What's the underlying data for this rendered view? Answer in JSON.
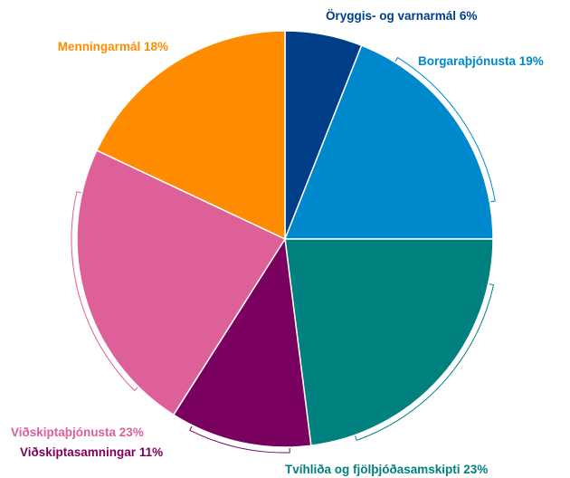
{
  "chart_data": {
    "type": "pie",
    "categories": [
      "Öryggis- og varnarmál",
      "Borgaraþjónusta",
      "Tvíhliða og fjölþjóðasamskipti",
      "Viðskiptasamningar",
      "Viðskiptaþjónusta",
      "Menningarmál"
    ],
    "values": [
      6,
      19,
      23,
      11,
      23,
      18
    ],
    "value_labels": [
      "6%",
      "19%",
      "23%",
      "11%",
      "23%",
      "18%"
    ],
    "colors": [
      "#003f87",
      "#0088cc",
      "#00807f",
      "#7a0060",
      "#dd6098",
      "#ff8c00"
    ]
  }
}
